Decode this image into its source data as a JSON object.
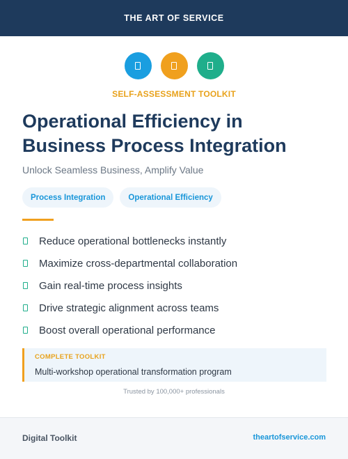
{
  "header": {
    "brand": "THE ART OF SERVICE"
  },
  "icons": [
    {
      "name": "document-icon",
      "color": "#1a9ee0"
    },
    {
      "name": "document-icon",
      "color": "#f0a01e"
    },
    {
      "name": "document-icon",
      "color": "#1fae8b"
    }
  ],
  "kicker": "SELF-ASSESSMENT TOOLKIT",
  "title": "Operational Efficiency in Business Process Integration",
  "subtitle": "Unlock Seamless Business, Amplify Value",
  "tags": [
    "Process Integration",
    "Operational Efficiency"
  ],
  "benefits": [
    "Reduce operational bottlenecks instantly",
    "Maximize cross-departmental collaboration",
    "Gain real-time process insights",
    "Drive strategic alignment across teams",
    "Boost overall operational performance"
  ],
  "callout": {
    "label": "COMPLETE TOOLKIT",
    "description": "Multi-workshop operational transformation program"
  },
  "trusted": "Trusted by 100,000+ professionals",
  "footer": {
    "left": "Digital Toolkit",
    "right": "theartofservice.com"
  },
  "colors": {
    "navy": "#1e3a5c",
    "accent_orange": "#f0a01e",
    "accent_blue": "#1996d9",
    "accent_green": "#1fae8b"
  }
}
